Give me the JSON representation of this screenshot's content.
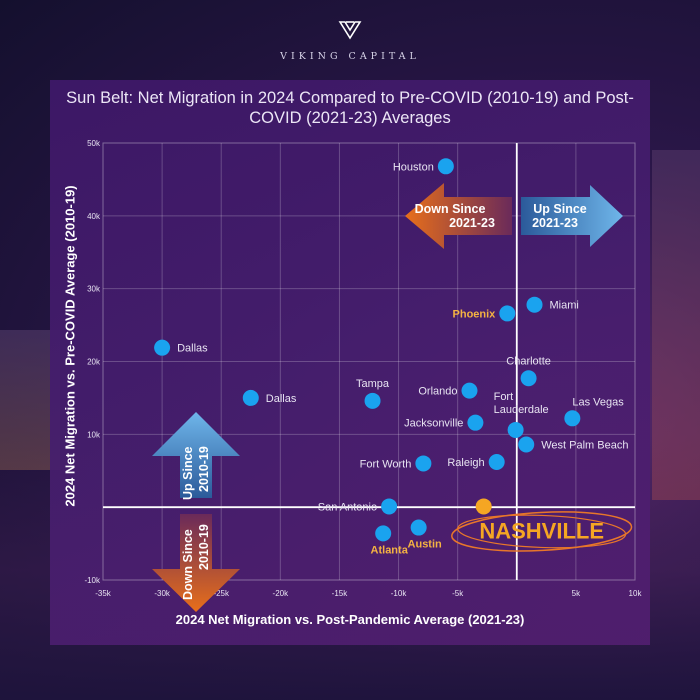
{
  "brand": {
    "name": "VIKING CAPITAL",
    "logo_icon": "viking-capital-logo"
  },
  "colors": {
    "point": "#1aa3ef",
    "highlight_point": "#f5a623",
    "gold_label": "#f5b342",
    "arrow_up": "#6fb6ea",
    "arrow_down": "#e86f1a"
  },
  "chart_data": {
    "type": "scatter",
    "title": "Sun Belt: Net Migration in 2024 Compared to Pre-COVID (2010-19) and Post-COVID (2021-23) Averages",
    "xlabel": "2024 Net Migration vs. Post-Pandemic Average (2021-23)",
    "ylabel": "2024 Net Migration vs. Pre-COVID Average (2010-19)",
    "xlim": [
      -35000,
      10000
    ],
    "ylim": [
      -10000,
      50000
    ],
    "x_ticks": [
      {
        "value": -35000,
        "label": "-35k"
      },
      {
        "value": -30000,
        "label": "-30k"
      },
      {
        "value": -25000,
        "label": "-25k"
      },
      {
        "value": -20000,
        "label": "-20k"
      },
      {
        "value": -15000,
        "label": "-15k"
      },
      {
        "value": -10000,
        "label": "-10k"
      },
      {
        "value": -5000,
        "label": "-5k"
      },
      {
        "value": 5000,
        "label": "5k"
      },
      {
        "value": 10000,
        "label": "10k"
      }
    ],
    "y_ticks": [
      {
        "value": 50000,
        "label": "50k"
      },
      {
        "value": 40000,
        "label": "40k"
      },
      {
        "value": 30000,
        "label": "30k"
      },
      {
        "value": 20000,
        "label": "20k"
      },
      {
        "value": 10000,
        "label": "10k"
      },
      {
        "value": -10000,
        "label": "-10k"
      }
    ],
    "grid": true,
    "quadrant_lines": {
      "x": 0,
      "y": 0
    },
    "points": [
      {
        "label": "Houston",
        "x": -6000,
        "y": 46800,
        "style": "normal",
        "label_side": "left"
      },
      {
        "label": "Miami",
        "x": 1500,
        "y": 27800,
        "style": "normal",
        "label_side": "right"
      },
      {
        "label": "Phoenix",
        "x": -800,
        "y": 26600,
        "style": "gold",
        "label_side": "left"
      },
      {
        "label": "Dallas",
        "x": -30000,
        "y": 21900,
        "style": "normal",
        "label_side": "right"
      },
      {
        "label": "Charlotte",
        "x": 1000,
        "y": 17700,
        "style": "normal",
        "label_side": "above"
      },
      {
        "label": "Orlando",
        "x": -4000,
        "y": 16000,
        "style": "normal",
        "label_side": "left"
      },
      {
        "label": "Tampa",
        "x": -12200,
        "y": 14600,
        "style": "normal",
        "label_side": "above"
      },
      {
        "label": "Dallas",
        "x": -22500,
        "y": 15000,
        "style": "normal",
        "label_side": "right"
      },
      {
        "label": "Las Vegas",
        "x": 4700,
        "y": 12200,
        "style": "normal",
        "label_side": "above-right"
      },
      {
        "label": "Jacksonville",
        "x": -3500,
        "y": 11600,
        "style": "normal",
        "label_side": "left"
      },
      {
        "label": "Fort Lauderdale",
        "x": -100,
        "y": 10600,
        "style": "normal",
        "label_side": "above-wrap"
      },
      {
        "label": "West Palm Beach",
        "x": 800,
        "y": 8600,
        "style": "normal",
        "label_side": "right"
      },
      {
        "label": "Fort Worth",
        "x": -7900,
        "y": 6000,
        "style": "normal",
        "label_side": "left"
      },
      {
        "label": "Raleigh",
        "x": -1700,
        "y": 6200,
        "style": "normal",
        "label_side": "left"
      },
      {
        "label": "San Antonio",
        "x": -10800,
        "y": 100,
        "style": "normal",
        "label_side": "left"
      },
      {
        "label": "NASHVILLE",
        "x": -2800,
        "y": 100,
        "style": "highlight",
        "label_side": "below-right"
      },
      {
        "label": "Atlanta",
        "x": -11300,
        "y": -3600,
        "style": "gold",
        "label_side": "below"
      },
      {
        "label": "Austin",
        "x": -8300,
        "y": -2800,
        "style": "gold",
        "label_side": "below"
      }
    ],
    "annotations": [
      {
        "label": "Down Since 2021-23",
        "direction": "left"
      },
      {
        "label": "Up Since 2021-23",
        "direction": "right"
      },
      {
        "label": "Up Since 2010-19",
        "direction": "up"
      },
      {
        "label": "Down Since 2010-19",
        "direction": "down"
      }
    ]
  }
}
